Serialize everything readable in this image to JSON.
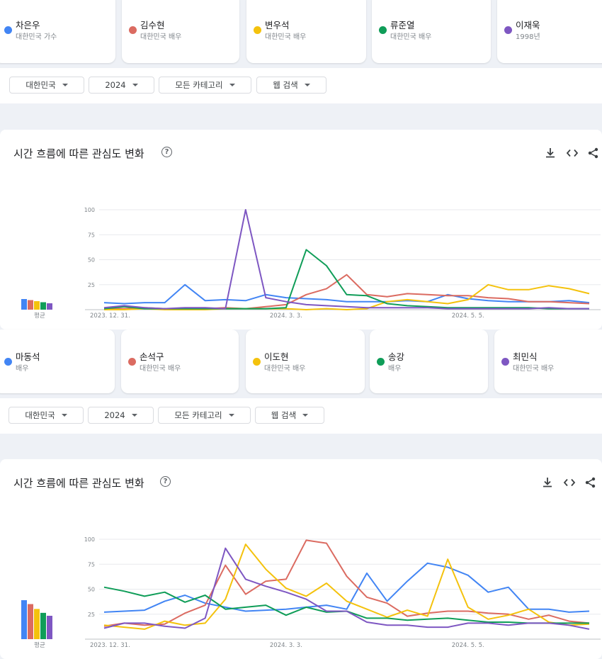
{
  "colors": {
    "blue": "#4285f4",
    "red": "#db4437",
    "yellow": "#f4c20d",
    "green": "#0f9d58",
    "purple": "#7e57c2"
  },
  "group1": {
    "terms": [
      {
        "name": "차은우",
        "sub": "대한민국 가수",
        "color": "#4285f4"
      },
      {
        "name": "김수현",
        "sub": "대한민국 배우",
        "color": "#db6b61"
      },
      {
        "name": "변우석",
        "sub": "대한민국 배우",
        "color": "#f4c20d"
      },
      {
        "name": "류준열",
        "sub": "대한민국 배우",
        "color": "#0f9d58"
      },
      {
        "name": "이재욱",
        "sub": "1998년",
        "color": "#7e57c2"
      }
    ],
    "filters": {
      "region": "대한민국",
      "year": "2024",
      "category": "모든 카테고리",
      "search_type": "웹 검색"
    },
    "chart_title": "시간 흐름에 따른 관심도 변화",
    "help": "?"
  },
  "group2": {
    "terms": [
      {
        "name": "마동석",
        "sub": "배우",
        "color": "#4285f4"
      },
      {
        "name": "손석구",
        "sub": "대한민국 배우",
        "color": "#db6b61"
      },
      {
        "name": "이도현",
        "sub": "대한민국 배우",
        "color": "#f4c20d"
      },
      {
        "name": "송강",
        "sub": "배우",
        "color": "#0f9d58"
      },
      {
        "name": "최민식",
        "sub": "대한민국 배우",
        "color": "#7e57c2"
      }
    ],
    "filters": {
      "region": "대한민국",
      "year": "2024",
      "category": "모든 카테고리",
      "search_type": "웹 검색"
    },
    "chart_title": "시간 흐름에 따른 관심도 변화",
    "help": "?"
  },
  "chart_data": [
    {
      "type": "line",
      "y_ticks": [
        25,
        50,
        75,
        100
      ],
      "ylim": [
        0,
        100
      ],
      "x_tick_labels": [
        "2023. 12. 31.",
        "2024. 3. 3.",
        "2024. 5. 5."
      ],
      "x_tick_index": [
        0,
        9,
        18
      ],
      "avg_label": "평균",
      "averages": [
        10,
        9,
        8,
        7,
        6
      ],
      "colors": [
        "#4285f4",
        "#db6b61",
        "#f4c20d",
        "#0f9d58",
        "#7e57c2"
      ],
      "series": [
        {
          "values": [
            7,
            6,
            7,
            7,
            25,
            9,
            10,
            9,
            15,
            12,
            11,
            10,
            8,
            8,
            8,
            9,
            8,
            15,
            11,
            9,
            8,
            8,
            8,
            9,
            7
          ]
        },
        {
          "values": [
            1,
            1,
            2,
            1,
            1,
            1,
            2,
            1,
            3,
            5,
            15,
            21,
            35,
            15,
            13,
            16,
            15,
            14,
            14,
            12,
            11,
            8,
            8,
            7,
            6
          ]
        },
        {
          "values": [
            0,
            0,
            1,
            0,
            0,
            0,
            1,
            1,
            1,
            1,
            0,
            1,
            0,
            1,
            8,
            10,
            8,
            6,
            10,
            25,
            20,
            20,
            24,
            21,
            16
          ]
        },
        {
          "values": [
            1,
            3,
            1,
            1,
            1,
            1,
            1,
            1,
            1,
            2,
            60,
            44,
            15,
            14,
            6,
            4,
            3,
            2,
            2,
            2,
            2,
            2,
            1,
            1,
            1
          ]
        },
        {
          "values": [
            2,
            4,
            2,
            1,
            2,
            2,
            1,
            100,
            12,
            8,
            5,
            4,
            3,
            2,
            2,
            2,
            2,
            1,
            1,
            1,
            1,
            1,
            2,
            1,
            1
          ]
        }
      ]
    },
    {
      "type": "line",
      "y_ticks": [
        25,
        50,
        75,
        100
      ],
      "ylim": [
        0,
        100
      ],
      "x_tick_labels": [
        "2023. 12. 31.",
        "2024. 3. 3.",
        "2024. 5. 5."
      ],
      "x_tick_index": [
        0,
        9,
        18
      ],
      "avg_label": "평균",
      "averages": [
        40,
        36,
        31,
        27,
        24
      ],
      "colors": [
        "#4285f4",
        "#db6b61",
        "#f4c20d",
        "#0f9d58",
        "#7e57c2"
      ],
      "series": [
        {
          "values": [
            27,
            28,
            29,
            38,
            44,
            36,
            32,
            28,
            29,
            30,
            32,
            34,
            30,
            66,
            38,
            58,
            76,
            72,
            64,
            47,
            52,
            30,
            30,
            27,
            28
          ]
        },
        {
          "values": [
            13,
            16,
            14,
            15,
            26,
            34,
            74,
            45,
            58,
            60,
            99,
            96,
            63,
            42,
            36,
            23,
            26,
            28,
            28,
            26,
            25,
            20,
            24,
            18,
            16
          ]
        },
        {
          "values": [
            14,
            12,
            10,
            18,
            14,
            16,
            40,
            95,
            70,
            51,
            43,
            56,
            38,
            30,
            22,
            29,
            23,
            80,
            32,
            20,
            24,
            30,
            17,
            14,
            15
          ]
        },
        {
          "values": [
            52,
            48,
            43,
            47,
            37,
            44,
            30,
            32,
            34,
            24,
            32,
            27,
            28,
            21,
            21,
            19,
            20,
            21,
            19,
            17,
            17,
            16,
            16,
            16,
            16
          ]
        },
        {
          "values": [
            11,
            16,
            16,
            13,
            11,
            21,
            91,
            60,
            53,
            47,
            40,
            28,
            28,
            17,
            14,
            14,
            12,
            12,
            16,
            16,
            14,
            16,
            16,
            14,
            10
          ]
        }
      ]
    }
  ]
}
